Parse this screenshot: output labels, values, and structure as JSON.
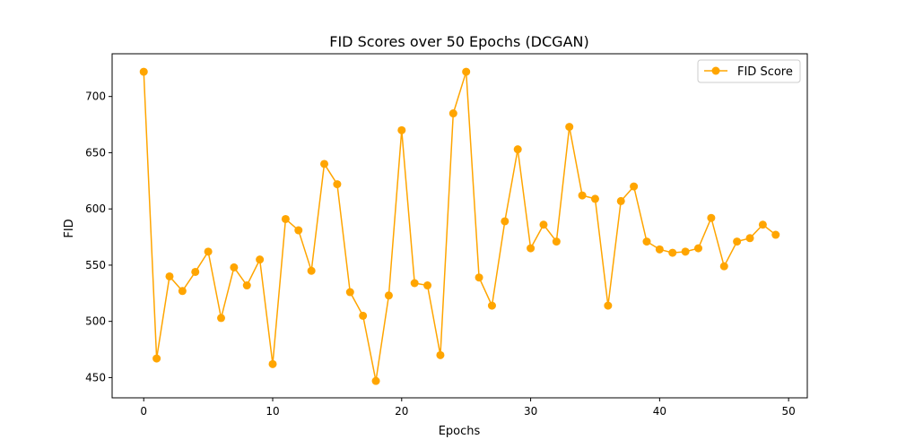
{
  "chart_data": {
    "type": "line",
    "title": "FID Scores over 50 Epochs (DCGAN)",
    "xlabel": "Epochs",
    "ylabel": "FID",
    "xlim": [
      -2.45,
      51.45
    ],
    "ylim": [
      432,
      738
    ],
    "xticks": [
      0,
      10,
      20,
      30,
      40,
      50
    ],
    "yticks": [
      450,
      500,
      550,
      600,
      650,
      700
    ],
    "grid": false,
    "legend_position": "top-right",
    "colors": {
      "series": "#ffa500",
      "frame": "#000000",
      "legend_border": "#cccccc"
    },
    "series": [
      {
        "name": "FID Score",
        "marker": "circle",
        "x": [
          0,
          1,
          2,
          3,
          4,
          5,
          6,
          7,
          8,
          9,
          10,
          11,
          12,
          13,
          14,
          15,
          16,
          17,
          18,
          19,
          20,
          21,
          22,
          23,
          24,
          25,
          26,
          27,
          28,
          29,
          30,
          31,
          32,
          33,
          34,
          35,
          36,
          37,
          38,
          39,
          40,
          41,
          42,
          43,
          44,
          45,
          46,
          47,
          48,
          49
        ],
        "values": [
          722,
          467,
          540,
          527,
          544,
          562,
          503,
          548,
          532,
          555,
          462,
          591,
          581,
          545,
          640,
          622,
          526,
          505,
          447,
          523,
          670,
          534,
          532,
          470,
          685,
          722,
          539,
          514,
          589,
          653,
          565,
          586,
          571,
          673,
          612,
          609,
          514,
          607,
          620,
          571,
          564,
          561,
          562,
          565,
          592,
          549,
          571,
          574,
          586,
          577
        ]
      }
    ]
  }
}
